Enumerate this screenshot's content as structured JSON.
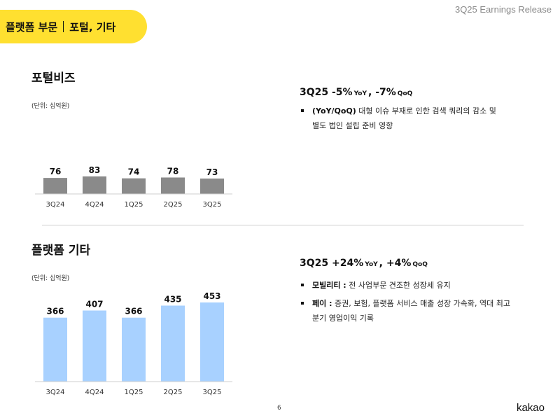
{
  "header": {
    "section": "플랫폼 부문",
    "subsection": "포털, 기타",
    "doc_title": "3Q25 Earnings Release"
  },
  "portal": {
    "title": "포털비즈",
    "unit": "(단위: 십억원)",
    "headline": {
      "period": "3Q25",
      "yoy": "-5%",
      "yoy_label": "YoY",
      "qoq": "-7%",
      "qoq_label": "QoQ"
    },
    "bullets": [
      {
        "label": "(YoY/QoQ)",
        "text": " 대형 이슈 부재로 인한 검색 쿼리의 감소 및",
        "line2": "별도 법인 설립 준비 영향"
      }
    ]
  },
  "platform_other": {
    "title": "플랫폼 기타",
    "unit": "(단위: 십억원)",
    "headline": {
      "period": "3Q25",
      "yoy": "+24%",
      "yoy_label": "YoY",
      "qoq": "+4%",
      "qoq_label": "QoQ"
    },
    "bullets": [
      {
        "label": "모빌리티 :",
        "text": " 전 사업부문 견조한 성장세 유지",
        "line2": ""
      },
      {
        "label": "페이 :",
        "text": " 증권, 보험, 플랫폼 서비스 매출 성장 가속화, 역대 최고",
        "line2": "분기 영업이익 기록"
      }
    ]
  },
  "chart_data": [
    {
      "type": "bar",
      "categories": [
        "3Q24",
        "4Q24",
        "1Q25",
        "2Q25",
        "3Q25"
      ],
      "values": [
        76,
        83,
        74,
        78,
        73
      ],
      "title": "포털비즈",
      "ylabel": "(단위: 십억원)",
      "color": "#8a8a8a",
      "grid": false
    },
    {
      "type": "bar",
      "categories": [
        "3Q24",
        "4Q24",
        "1Q25",
        "2Q25",
        "3Q25"
      ],
      "values": [
        366,
        407,
        366,
        435,
        453
      ],
      "title": "플랫폼 기타",
      "ylabel": "(단위: 십억원)",
      "color": "#A8D1FF",
      "grid": false
    }
  ],
  "footer": {
    "page": "6",
    "logo": "kakao"
  }
}
